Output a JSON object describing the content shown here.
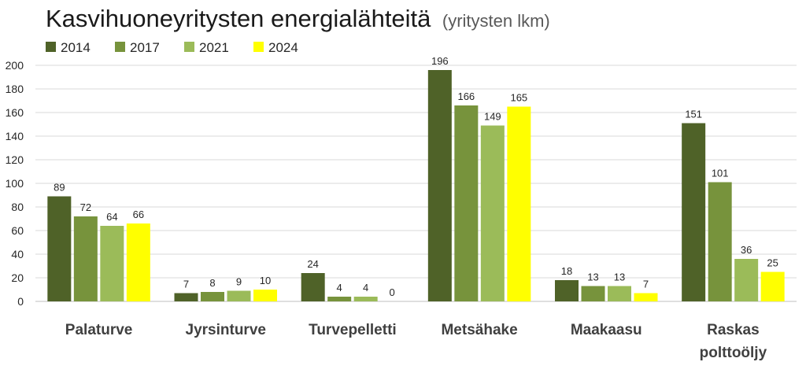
{
  "chart_data": {
    "type": "bar",
    "title": "Kasvihuoneyritysten energialähteitä",
    "subtitle": "(yritysten lkm)",
    "xlabel": "",
    "ylabel": "",
    "ylim": [
      0,
      200
    ],
    "yticks": [
      0,
      20,
      40,
      60,
      80,
      100,
      120,
      140,
      160,
      180,
      200
    ],
    "grid": true,
    "legend_position": "top-left",
    "categories": [
      [
        "Palaturve"
      ],
      [
        "Jyrsinturve"
      ],
      [
        "Turvepelletti"
      ],
      [
        "Metsähake"
      ],
      [
        "Maakaasu"
      ],
      [
        "Raskas",
        "polttoöljy"
      ]
    ],
    "series": [
      {
        "name": "2014",
        "color": "#4f6228",
        "values": [
          89,
          7,
          24,
          196,
          18,
          151
        ]
      },
      {
        "name": "2017",
        "color": "#77933c",
        "values": [
          72,
          8,
          4,
          166,
          13,
          101
        ]
      },
      {
        "name": "2021",
        "color": "#9bbb59",
        "values": [
          64,
          9,
          4,
          149,
          13,
          36
        ]
      },
      {
        "name": "2024",
        "color": "#ffff00",
        "values": [
          66,
          10,
          0,
          165,
          7,
          25
        ]
      }
    ]
  }
}
